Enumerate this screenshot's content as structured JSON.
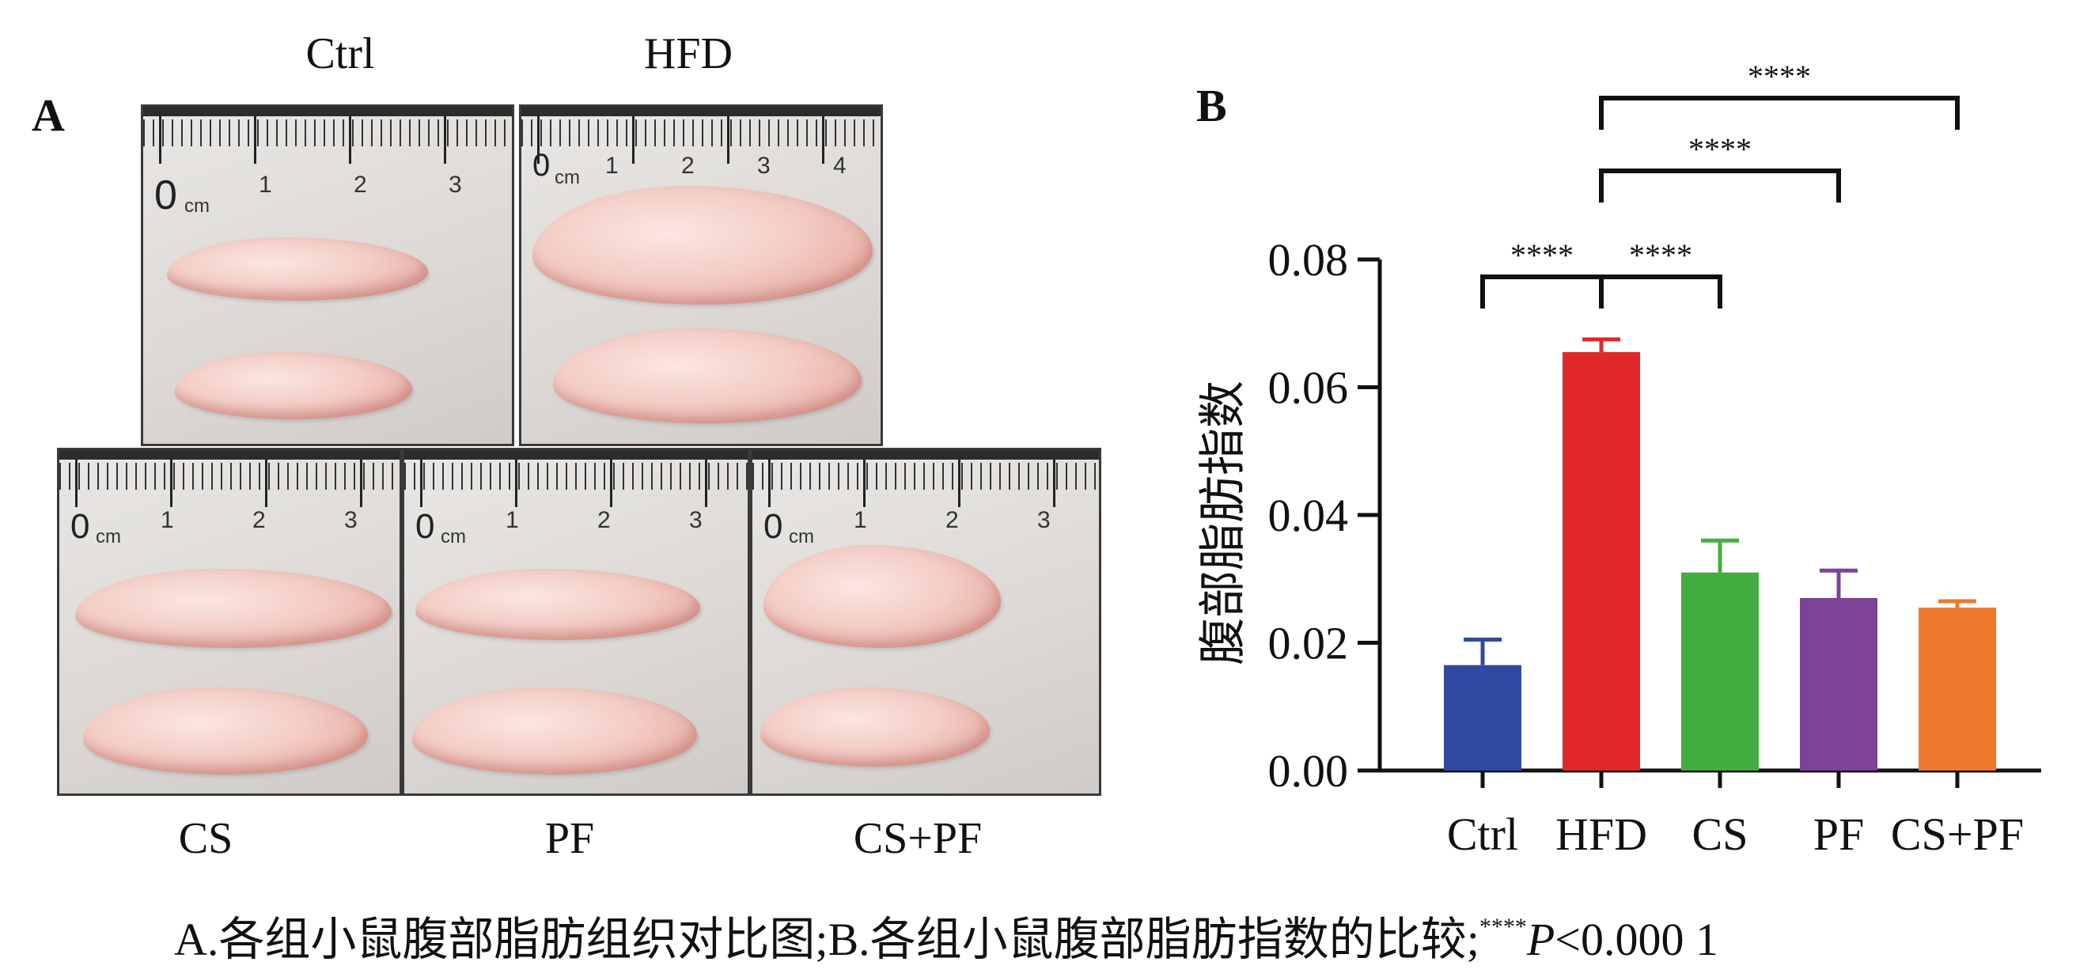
{
  "panel_a": {
    "letter": "A",
    "labels": {
      "ctrl": "Ctrl",
      "hfd": "HFD",
      "cs": "CS",
      "pf": "PF",
      "cspf": "CS+PF"
    },
    "ruler": {
      "zero": "0",
      "unit": "cm",
      "n1": "1",
      "n2": "2",
      "n3": "3",
      "n4": "4"
    }
  },
  "panel_b": {
    "letter": "B"
  },
  "chart_data": {
    "type": "bar",
    "ylabel": "腹部脂肪指数",
    "categories": [
      "Ctrl",
      "HFD",
      "CS",
      "PF",
      "CS+PF"
    ],
    "values": [
      0.0165,
      0.0655,
      0.031,
      0.027,
      0.0255
    ],
    "errors": [
      0.004,
      0.002,
      0.005,
      0.0043,
      0.001
    ],
    "colors": [
      "#2f4aa0",
      "#e0282b",
      "#43ae3f",
      "#7d4398",
      "#ee7a2e"
    ],
    "ylim": [
      0,
      0.08
    ],
    "yticks": [
      "0.00",
      "0.02",
      "0.04",
      "0.06",
      "0.08"
    ],
    "yticks_values": [
      0,
      0.02,
      0.04,
      0.06,
      0.08
    ],
    "significance": [
      {
        "from": 0,
        "to": 1,
        "label": "****",
        "level": 0
      },
      {
        "from": 1,
        "to": 2,
        "label": "****",
        "level": 0
      },
      {
        "from": 1,
        "to": 3,
        "label": "****",
        "level": 1
      },
      {
        "from": 1,
        "to": 4,
        "label": "****",
        "level": 2
      }
    ]
  },
  "caption": {
    "text": "A.各组小鼠腹部脂肪组织对比图;B.各组小鼠腹部脂肪指数的比较;",
    "sup": "****",
    "p_symbol": "P",
    "threshold": "<0.000 1"
  }
}
